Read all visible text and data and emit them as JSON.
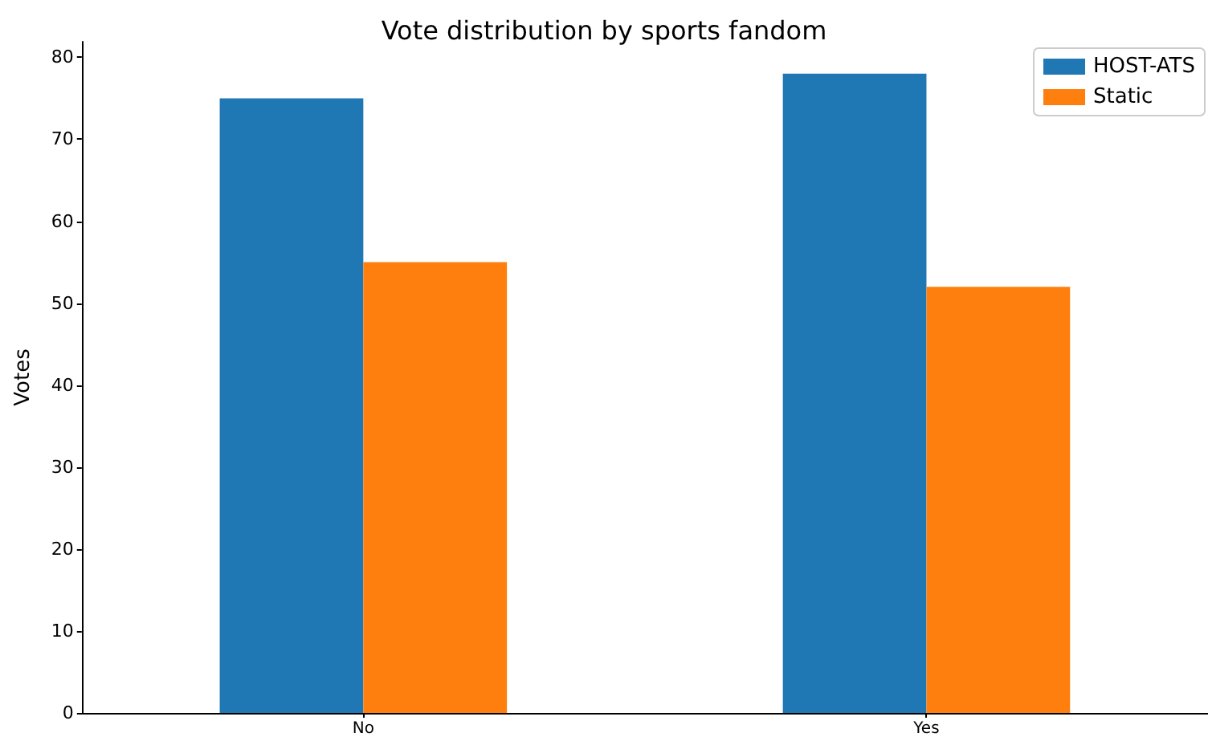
{
  "chart_data": {
    "type": "bar",
    "title": "Vote distribution by sports fandom",
    "ylabel": "Votes",
    "categories": [
      "No",
      "Yes"
    ],
    "series": [
      {
        "name": "HOST-ATS",
        "color": "#1f77b4",
        "values": [
          75,
          78
        ]
      },
      {
        "name": "Static",
        "color": "#ff7f0e",
        "values": [
          55,
          52
        ]
      }
    ],
    "ylim": [
      0,
      81.9
    ],
    "yticks": [
      0,
      10,
      20,
      30,
      40,
      50,
      60,
      70,
      80
    ],
    "grid": false,
    "legend": "top right"
  }
}
